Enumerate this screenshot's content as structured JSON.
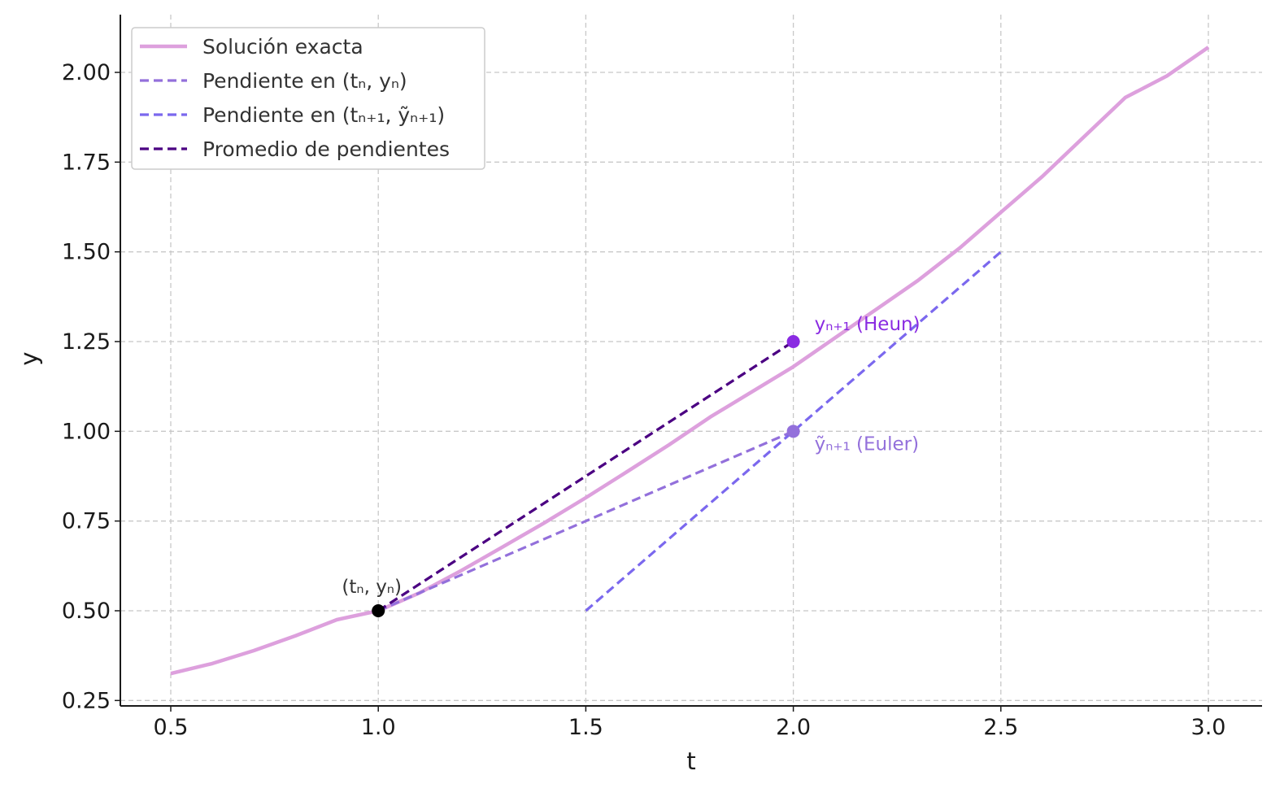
{
  "chart_data": {
    "type": "line",
    "xlabel": "t",
    "ylabel": "y",
    "xlim": [
      0.38,
      3.13
    ],
    "ylim": [
      0.24,
      2.15
    ],
    "x_ticks": [
      0.5,
      1.0,
      1.5,
      2.0,
      2.5,
      3.0
    ],
    "x_tick_labels": [
      "0.5",
      "1.0",
      "1.5",
      "2.0",
      "2.5",
      "3.0"
    ],
    "y_ticks": [
      0.25,
      0.5,
      0.75,
      1.0,
      1.25,
      1.5,
      1.75,
      2.0
    ],
    "y_tick_labels": [
      "0.25",
      "0.50",
      "0.75",
      "1.00",
      "1.25",
      "1.50",
      "1.75",
      "2.00"
    ],
    "grid": true,
    "legend_position": "top-left",
    "series": [
      {
        "name": "Solución exacta",
        "style": "solid",
        "color": "#dda0dd",
        "x": [
          0.5,
          0.6,
          0.7,
          0.8,
          0.9,
          1.0,
          1.1,
          1.2,
          1.3,
          1.4,
          1.5,
          1.6,
          1.7,
          1.8,
          1.9,
          2.0,
          2.1,
          2.2,
          2.3,
          2.4,
          2.5,
          2.6,
          2.7,
          2.8,
          2.9,
          3.0
        ],
        "y": [
          0.325,
          0.353,
          0.389,
          0.43,
          0.475,
          0.5,
          0.55,
          0.612,
          0.678,
          0.745,
          0.815,
          0.888,
          0.962,
          1.04,
          1.11,
          1.18,
          1.26,
          1.34,
          1.42,
          1.51,
          1.61,
          1.71,
          1.82,
          1.93,
          1.99,
          2.07
        ]
      },
      {
        "name": "Pendiente en (tₙ, yₙ)",
        "style": "dashed",
        "color": "#9370db",
        "x": [
          1.0,
          1.5,
          2.0
        ],
        "y": [
          0.5,
          0.75,
          1.0
        ]
      },
      {
        "name": "Pendiente en (tₙ₊₁, ỹₙ₊₁)",
        "style": "dashed",
        "color": "#7b68ee",
        "x": [
          1.5,
          2.0,
          2.5
        ],
        "y": [
          0.5,
          1.0,
          1.5
        ]
      },
      {
        "name": "Promedio de pendientes",
        "style": "dashed",
        "color": "#4b0082",
        "x": [
          1.0,
          2.0
        ],
        "y": [
          0.5,
          1.25
        ]
      }
    ],
    "points": [
      {
        "x": 1.0,
        "y": 0.5,
        "color": "#000000",
        "label": "(tₙ, yₙ)",
        "label_color": "#333333",
        "label_side": "above"
      },
      {
        "x": 2.0,
        "y": 1.25,
        "color": "#8a2be2",
        "label": "yₙ₊₁ (Heun)",
        "label_color": "#8a2be2",
        "label_side": "right"
      },
      {
        "x": 2.0,
        "y": 1.0,
        "color": "#9370db",
        "label": "ỹₙ₊₁ (Euler)",
        "label_color": "#9370db",
        "label_side": "right-below"
      }
    ]
  }
}
